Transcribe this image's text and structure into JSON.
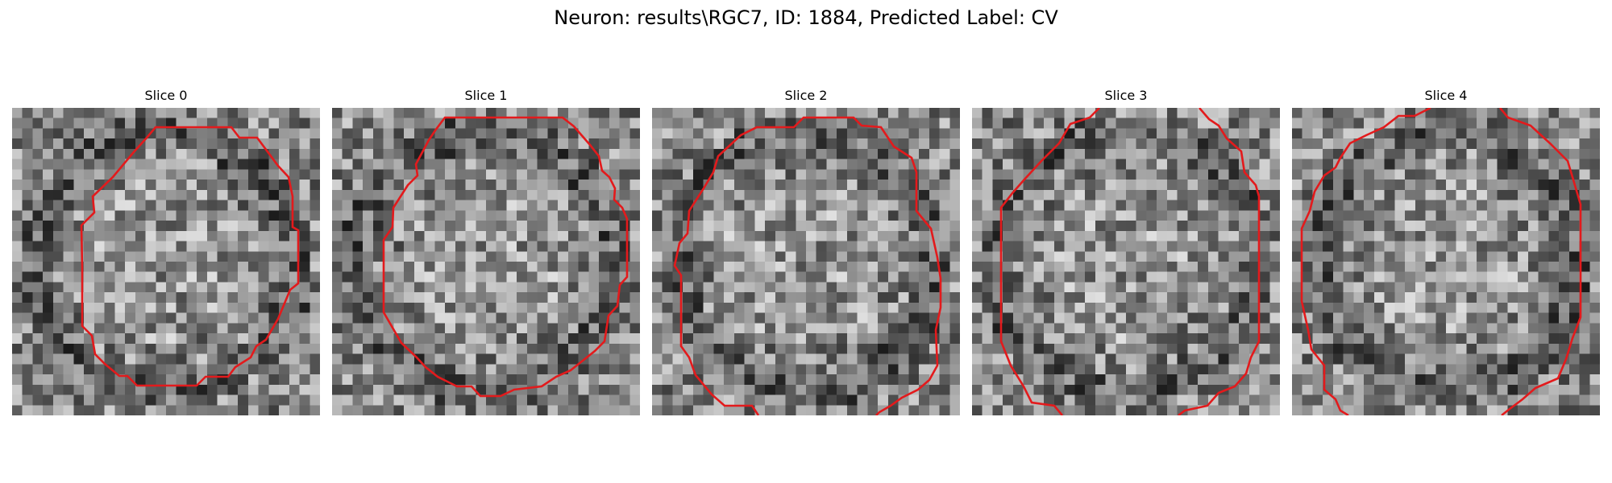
{
  "figure": {
    "title": "Neuron: results\\RGC7, ID: 1884, Predicted Label: CV",
    "contour_color": "#e31a1c"
  },
  "panels": [
    {
      "title": "Slice 0"
    },
    {
      "title": "Slice 1"
    },
    {
      "title": "Slice 2"
    },
    {
      "title": "Slice 3"
    },
    {
      "title": "Slice 4"
    }
  ]
}
